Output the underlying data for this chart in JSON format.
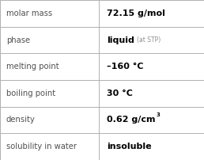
{
  "rows": [
    {
      "label": "molar mass",
      "value": "72.15 g/mol",
      "type": "plain"
    },
    {
      "label": "phase",
      "value": "liquid",
      "suffix": "(at STP)",
      "type": "suffix"
    },
    {
      "label": "melting point",
      "value": "–160 °C",
      "type": "plain"
    },
    {
      "label": "boiling point",
      "value": "30 °C",
      "type": "plain"
    },
    {
      "label": "density",
      "value": "0.62 g/cm",
      "superscript": "3",
      "type": "super"
    },
    {
      "label": "solubility in water",
      "value": "insoluble",
      "type": "plain"
    }
  ],
  "bg_color": "#ffffff",
  "border_color": "#b0b0b0",
  "label_color": "#505050",
  "value_color": "#000000",
  "suffix_color": "#909090",
  "label_fontsize": 7.2,
  "value_fontsize": 8.0,
  "suffix_fontsize": 5.5,
  "col_split": 0.485,
  "fig_width": 2.58,
  "fig_height": 2.02,
  "dpi": 100
}
